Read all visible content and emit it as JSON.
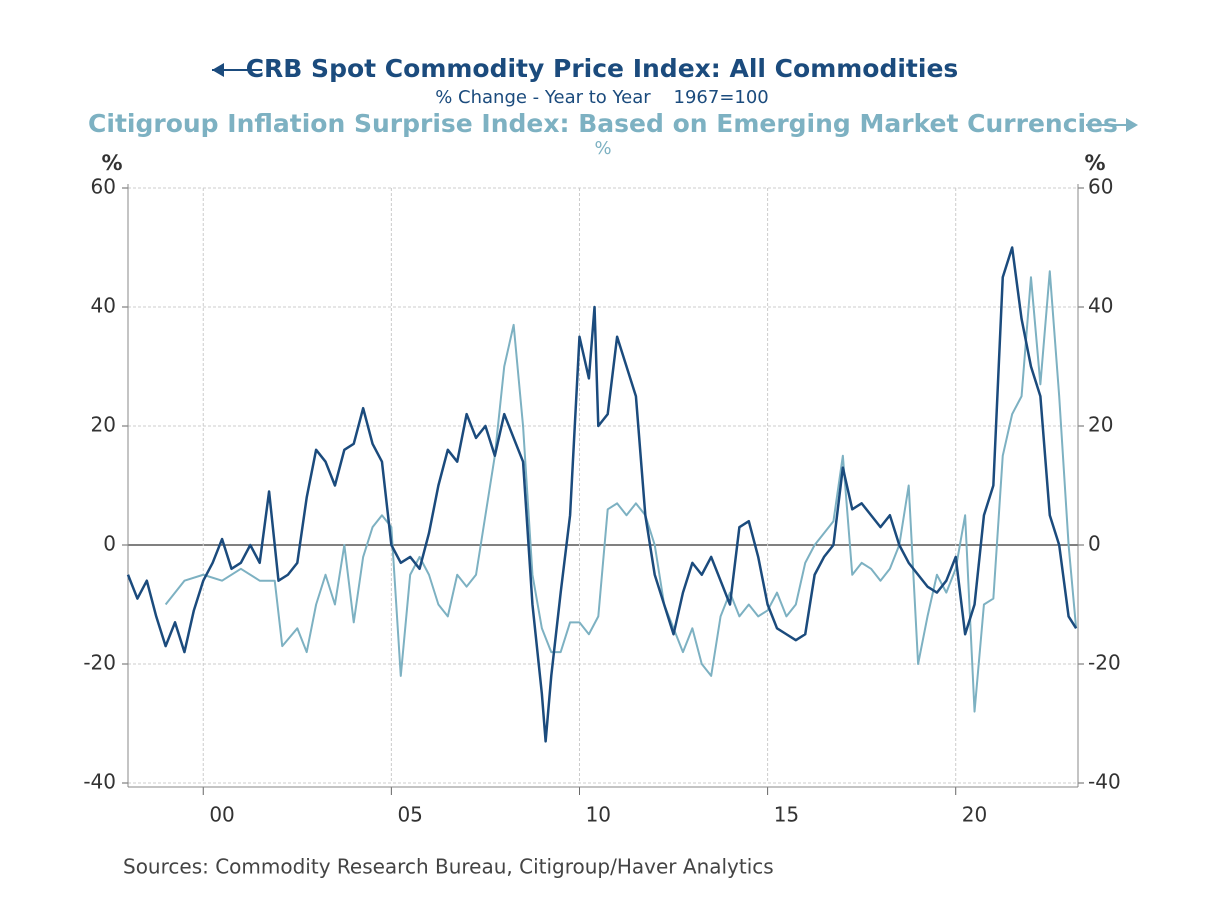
{
  "chart_data": {
    "type": "line",
    "title": "CRB Spot Commodity Price Index: All Commodities",
    "subtitle": "% Change - Year to Year    1967=100",
    "title2": "Citigroup Inflation Surprise Index: Based on Emerging Market Currencies",
    "subtitle2": "%",
    "ylabel": "%",
    "y2label": "%",
    "source": "Sources:  Commodity Research Bureau, Citigroup/Haver Analytics",
    "xlim": [
      1998,
      2023.25
    ],
    "xticks": [
      {
        "value": 2000,
        "label": "00"
      },
      {
        "value": 2005,
        "label": "05"
      },
      {
        "value": 2010,
        "label": "10"
      },
      {
        "value": 2015,
        "label": "15"
      },
      {
        "value": 2020,
        "label": "20"
      }
    ],
    "ylim": [
      -40,
      60
    ],
    "yticks": [
      -40,
      -20,
      0,
      20,
      40,
      60
    ],
    "y2lim": [
      -40,
      60
    ],
    "y2ticks": [
      -40,
      -20,
      0,
      20,
      40,
      60
    ],
    "grid": true,
    "series": [
      {
        "name": "CRB Spot Commodity Price Index: All Commodities",
        "color": "#1b4b7d",
        "x": [
          1998,
          1998.25,
          1998.5,
          1998.75,
          1999,
          1999.25,
          1999.5,
          1999.75,
          2000,
          2000.25,
          2000.5,
          2000.75,
          2001,
          2001.25,
          2001.5,
          2001.75,
          2002,
          2002.25,
          2002.5,
          2002.75,
          2003,
          2003.25,
          2003.5,
          2003.75,
          2004,
          2004.25,
          2004.5,
          2004.75,
          2005,
          2005.25,
          2005.5,
          2005.75,
          2006,
          2006.25,
          2006.5,
          2006.75,
          2007,
          2007.25,
          2007.5,
          2007.75,
          2008,
          2008.25,
          2008.5,
          2008.75,
          2009,
          2009.1,
          2009.25,
          2009.5,
          2009.75,
          2010,
          2010.25,
          2010.4,
          2010.5,
          2010.75,
          2011,
          2011.25,
          2011.5,
          2011.75,
          2012,
          2012.25,
          2012.5,
          2012.75,
          2013,
          2013.25,
          2013.5,
          2013.75,
          2014,
          2014.25,
          2014.5,
          2014.75,
          2015,
          2015.25,
          2015.5,
          2015.75,
          2016,
          2016.25,
          2016.5,
          2016.75,
          2017,
          2017.25,
          2017.5,
          2017.75,
          2018,
          2018.25,
          2018.5,
          2018.75,
          2019,
          2019.25,
          2019.5,
          2019.75,
          2020,
          2020.25,
          2020.5,
          2020.75,
          2021,
          2021.25,
          2021.5,
          2021.75,
          2022,
          2022.25,
          2022.5,
          2022.75,
          2023,
          2023.2
        ],
        "values": [
          -5,
          -9,
          -6,
          -12,
          -17,
          -13,
          -18,
          -11,
          -6,
          -3,
          1,
          -4,
          -3,
          0,
          -3,
          9,
          -6,
          -5,
          -3,
          8,
          16,
          14,
          10,
          16,
          17,
          23,
          17,
          14,
          0,
          -3,
          -2,
          -4,
          2,
          10,
          16,
          14,
          22,
          18,
          20,
          15,
          22,
          18,
          14,
          -10,
          -25,
          -33,
          -22,
          -8,
          5,
          35,
          28,
          40,
          20,
          22,
          35,
          30,
          25,
          5,
          -5,
          -10,
          -15,
          -8,
          -3,
          -5,
          -2,
          -6,
          -10,
          3,
          4,
          -2,
          -10,
          -14,
          -15,
          -16,
          -15,
          -5,
          -2,
          0,
          13,
          6,
          7,
          5,
          3,
          5,
          0,
          -3,
          -5,
          -7,
          -8,
          -6,
          -2,
          -15,
          -10,
          5,
          10,
          45,
          50,
          38,
          30,
          25,
          5,
          0,
          -12,
          -14
        ]
      },
      {
        "name": "Citigroup Inflation Surprise Index: Based on Emerging Market Currencies",
        "color": "#7db1c2",
        "axis": "y2",
        "x": [
          1999,
          1999.5,
          2000,
          2000.5,
          2001,
          2001.5,
          2001.9,
          2002.1,
          2002.5,
          2002.75,
          2003,
          2003.25,
          2003.5,
          2003.75,
          2004,
          2004.25,
          2004.5,
          2004.75,
          2005,
          2005.25,
          2005.5,
          2005.75,
          2006,
          2006.25,
          2006.5,
          2006.75,
          2007,
          2007.25,
          2007.5,
          2007.75,
          2008,
          2008.25,
          2008.5,
          2008.75,
          2009,
          2009.25,
          2009.5,
          2009.75,
          2010,
          2010.25,
          2010.5,
          2010.75,
          2011,
          2011.25,
          2011.5,
          2011.75,
          2012,
          2012.25,
          2012.5,
          2012.75,
          2013,
          2013.25,
          2013.5,
          2013.75,
          2014,
          2014.25,
          2014.5,
          2014.75,
          2015,
          2015.25,
          2015.5,
          2015.75,
          2016,
          2016.25,
          2016.5,
          2016.75,
          2017,
          2017.25,
          2017.5,
          2017.75,
          2018,
          2018.25,
          2018.5,
          2018.75,
          2019,
          2019.25,
          2019.5,
          2019.75,
          2020,
          2020.25,
          2020.5,
          2020.75,
          2021,
          2021.25,
          2021.5,
          2021.75,
          2022,
          2022.25,
          2022.5,
          2022.75,
          2023,
          2023.2
        ],
        "values": [
          -10,
          -6,
          -5,
          -6,
          -4,
          -6,
          -6,
          -17,
          -14,
          -18,
          -10,
          -5,
          -10,
          0,
          -13,
          -2,
          3,
          5,
          3,
          -22,
          -5,
          -2,
          -5,
          -10,
          -12,
          -5,
          -7,
          -5,
          5,
          15,
          30,
          37,
          20,
          -5,
          -14,
          -18,
          -18,
          -13,
          -13,
          -15,
          -12,
          6,
          7,
          5,
          7,
          5,
          0,
          -10,
          -14,
          -18,
          -14,
          -20,
          -22,
          -12,
          -8,
          -12,
          -10,
          -12,
          -11,
          -8,
          -12,
          -10,
          -3,
          0,
          2,
          4,
          15,
          -5,
          -3,
          -4,
          -6,
          -4,
          0,
          10,
          -20,
          -12,
          -5,
          -8,
          -4,
          5,
          -28,
          -10,
          -9,
          15,
          22,
          25,
          45,
          27,
          46,
          25,
          0,
          -14
        ]
      }
    ]
  }
}
